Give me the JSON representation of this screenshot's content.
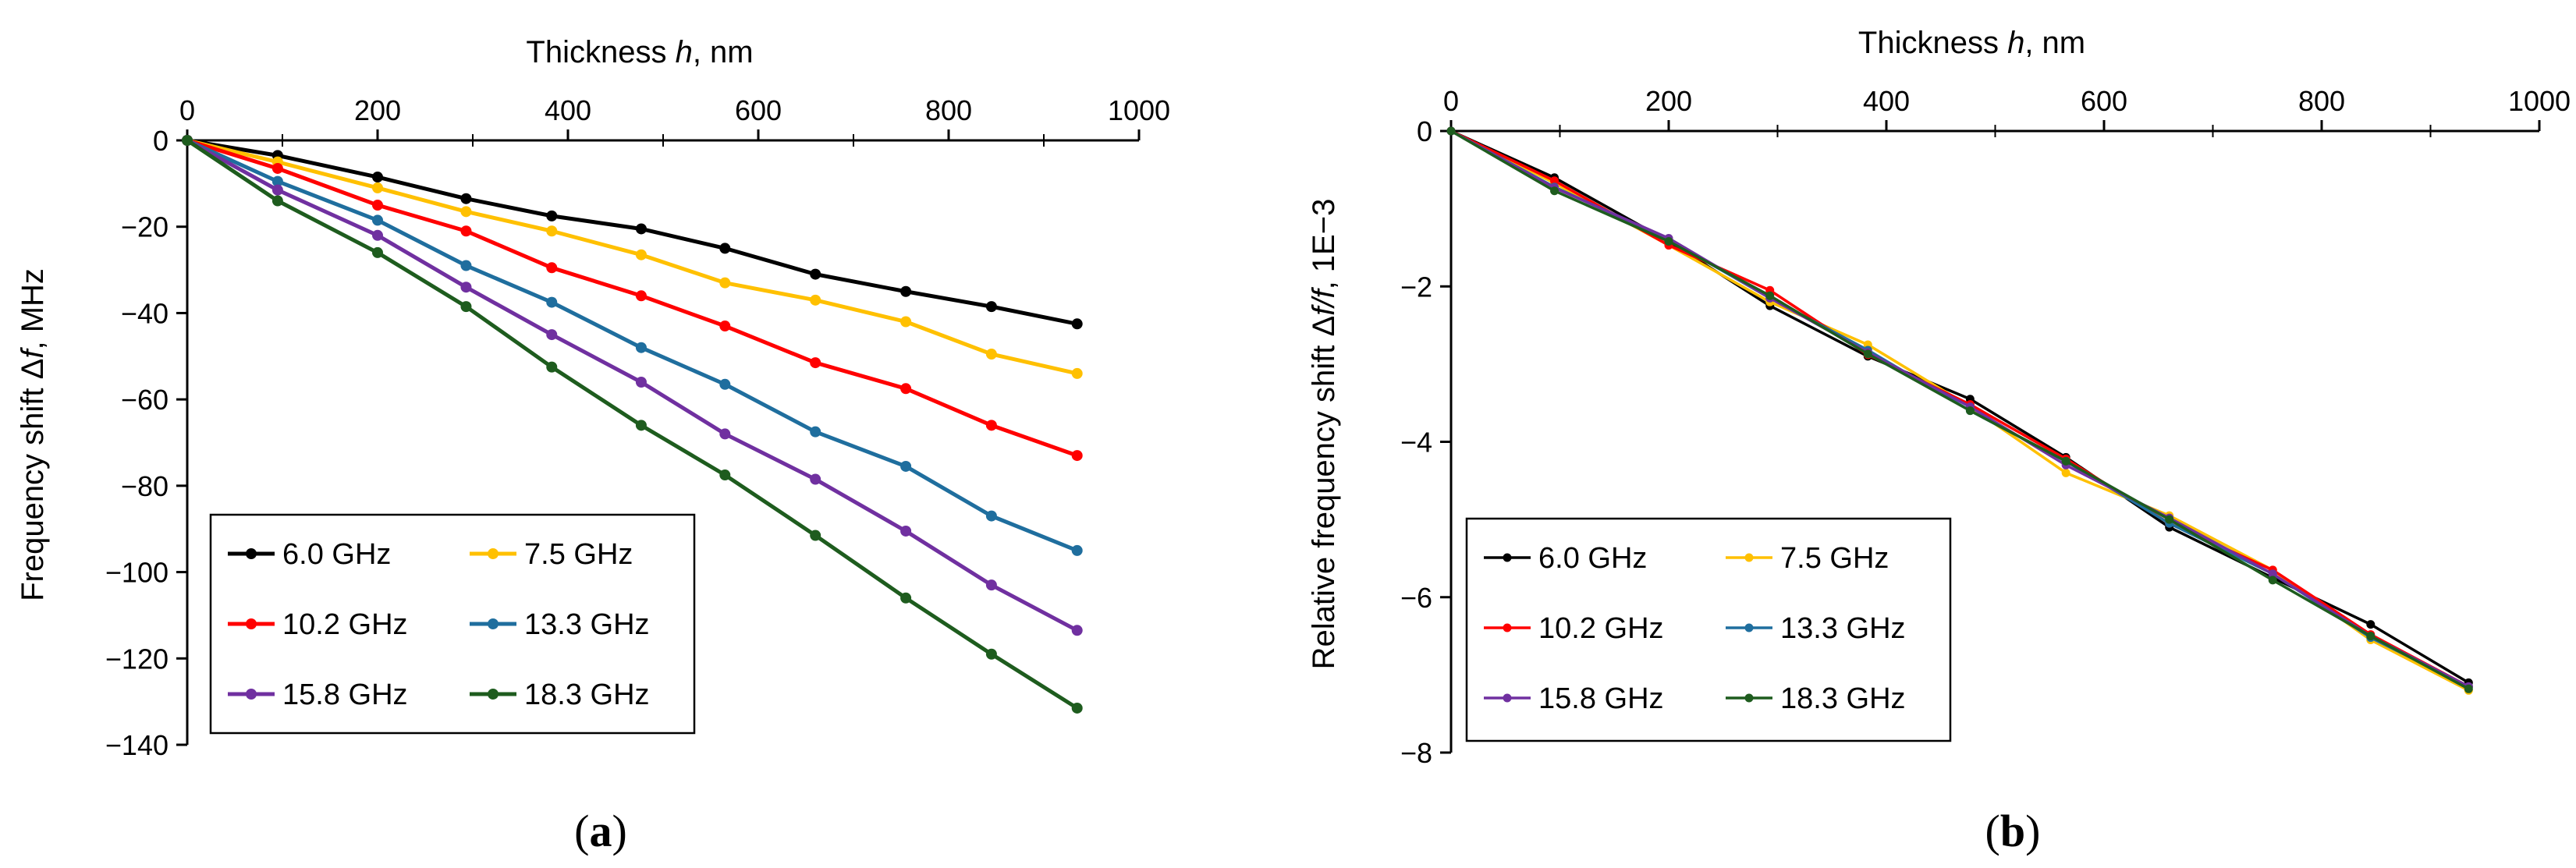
{
  "chart_data": [
    {
      "type": "line",
      "panel_label_left": "(",
      "panel_label_letter": "a",
      "panel_label_right": ")",
      "xlabel_prefix": "Thickness ",
      "xlabel_var": "h",
      "xlabel_suffix": ", nm",
      "ylabel_prefix": "Frequency shift Δ",
      "ylabel_var": "f",
      "ylabel_suffix": ", MHz",
      "xlim": [
        0,
        1000
      ],
      "ylim": [
        -140,
        0
      ],
      "x_ticks": [
        0,
        200,
        400,
        600,
        800,
        1000
      ],
      "x_tick_labels": [
        "0",
        "200",
        "400",
        "600",
        "800",
        "1000"
      ],
      "y_ticks": [
        0,
        -20,
        -40,
        -60,
        -80,
        -100,
        -120,
        -140
      ],
      "y_tick_labels": [
        "0",
        "−20",
        "−40",
        "−60",
        "−80",
        "−100",
        "−120",
        "−140"
      ],
      "x_axis_position": "top",
      "grid": false,
      "legend_position": "bottom-left",
      "x": [
        0,
        95,
        200,
        293,
        383,
        477,
        565,
        660,
        755,
        845,
        935
      ],
      "series": [
        {
          "name": "6.0 GHz",
          "color": "#000000",
          "values": [
            0,
            -3.5,
            -8.5,
            -13.5,
            -17.5,
            -20.5,
            -25,
            -31,
            -35,
            -38.5,
            -42.5
          ]
        },
        {
          "name": "7.5 GHz",
          "color": "#FFC000",
          "values": [
            0,
            -5,
            -11,
            -16.5,
            -21,
            -26.5,
            -33,
            -37,
            -42,
            -49.5,
            -54
          ]
        },
        {
          "name": "10.2 GHz",
          "color": "#FF0000",
          "values": [
            0,
            -6.5,
            -15,
            -21,
            -29.5,
            -36,
            -43,
            -51.5,
            -57.5,
            -66,
            -73
          ]
        },
        {
          "name": "13.3 GHz",
          "color": "#1F6E9E",
          "values": [
            0,
            -9.5,
            -18.5,
            -29,
            -37.5,
            -48,
            -56.5,
            -67.5,
            -75.5,
            -87,
            -95
          ]
        },
        {
          "name": "15.8 GHz",
          "color": "#7030A0",
          "values": [
            0,
            -11.5,
            -22,
            -34,
            -45,
            -56,
            -68,
            -78.5,
            -90.5,
            -103,
            -113.5
          ]
        },
        {
          "name": "18.3 GHz",
          "color": "#1E5C1E",
          "values": [
            0,
            -14,
            -26,
            -38.5,
            -52.5,
            -66,
            -77.5,
            -91.5,
            -106,
            -119,
            -131.5
          ]
        }
      ]
    },
    {
      "type": "line",
      "panel_label_left": "(",
      "panel_label_letter": "b",
      "panel_label_right": ")",
      "xlabel_prefix": "Thickness ",
      "xlabel_var": "h",
      "xlabel_suffix": ", nm",
      "ylabel_prefix": "Relative frequency shift Δ",
      "ylabel_var": "f/f",
      "ylabel_suffix": ", 1E−3",
      "xlim": [
        0,
        1000
      ],
      "ylim": [
        -8,
        0
      ],
      "x_ticks": [
        0,
        200,
        400,
        600,
        800,
        1000
      ],
      "x_tick_labels": [
        "0",
        "200",
        "400",
        "600",
        "800",
        "1000"
      ],
      "y_ticks": [
        0,
        -2,
        -4,
        -6,
        -8
      ],
      "y_tick_labels": [
        "0",
        "−2",
        "−4",
        "−6",
        "−8"
      ],
      "x_axis_position": "top",
      "grid": false,
      "legend_position": "bottom-left",
      "x": [
        0,
        95,
        200,
        293,
        383,
        477,
        565,
        660,
        755,
        845,
        935
      ],
      "series": [
        {
          "name": "6.0 GHz",
          "color": "#000000",
          "values": [
            0,
            -0.6,
            -1.42,
            -2.25,
            -2.9,
            -3.45,
            -4.2,
            -5.1,
            -5.75,
            -6.35,
            -7.1
          ]
        },
        {
          "name": "7.5 GHz",
          "color": "#FFC000",
          "values": [
            0,
            -0.67,
            -1.47,
            -2.2,
            -2.75,
            -3.55,
            -4.4,
            -4.95,
            -5.65,
            -6.55,
            -7.2
          ]
        },
        {
          "name": "10.2 GHz",
          "color": "#FF0000",
          "values": [
            0,
            -0.64,
            -1.47,
            -2.05,
            -2.88,
            -3.52,
            -4.22,
            -5.05,
            -5.65,
            -6.48,
            -7.15
          ]
        },
        {
          "name": "13.3 GHz",
          "color": "#1F6E9E",
          "values": [
            0,
            -0.72,
            -1.4,
            -2.15,
            -2.82,
            -3.6,
            -4.25,
            -5.05,
            -5.7,
            -6.52,
            -7.15
          ]
        },
        {
          "name": "15.8 GHz",
          "color": "#7030A0",
          "values": [
            0,
            -0.73,
            -1.38,
            -2.15,
            -2.85,
            -3.55,
            -4.3,
            -4.98,
            -5.7,
            -6.5,
            -7.15
          ]
        },
        {
          "name": "18.3 GHz",
          "color": "#1E5C1E",
          "values": [
            0,
            -0.77,
            -1.42,
            -2.12,
            -2.87,
            -3.6,
            -4.25,
            -5.0,
            -5.78,
            -6.5,
            -7.18
          ]
        }
      ]
    }
  ]
}
